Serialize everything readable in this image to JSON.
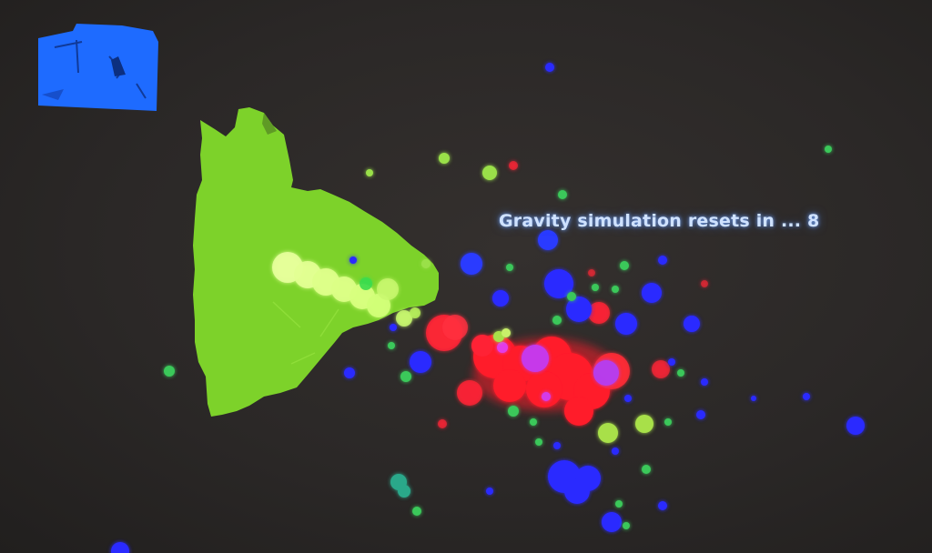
{
  "hud": {
    "countdown_prefix": "Gravity simulation resets in ...",
    "countdown_value": "8"
  },
  "palette": {
    "background": "#2b2827",
    "depth_blob": "#7dd22a",
    "depth_inset": "#1e6bff",
    "particle_red": "#ff1a2a",
    "particle_blue": "#2a2aff",
    "particle_green": "#3ac85a",
    "particle_yellow": "#d8ff7a"
  }
}
